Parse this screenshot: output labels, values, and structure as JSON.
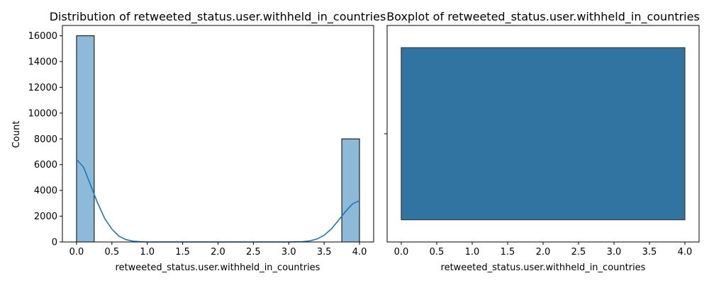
{
  "colors": {
    "hist_fill": "#8ebad9",
    "kde_line": "#1f77b4",
    "box_fill": "#3274a1",
    "box_edge": "#3d3d3d",
    "axis": "#000000"
  },
  "chart_data": [
    {
      "type": "histogram",
      "title": "Distribution of retweeted_status.user.withheld_in_countries",
      "xlabel": "retweeted_status.user.withheld_in_countries",
      "ylabel": "Count",
      "xlim": [
        -0.2,
        4.2
      ],
      "ylim": [
        0,
        16800
      ],
      "xticks": [
        "0.0",
        "0.5",
        "1.0",
        "1.5",
        "2.0",
        "2.5",
        "3.0",
        "3.5",
        "4.0"
      ],
      "yticks": [
        "0",
        "2000",
        "4000",
        "6000",
        "8000",
        "10000",
        "12000",
        "14000",
        "16000"
      ],
      "bins": [
        {
          "x0": 0.0,
          "x1": 0.25,
          "count": 16000
        },
        {
          "x0": 3.75,
          "x1": 4.0,
          "count": 8000
        }
      ],
      "kde": {
        "x": [
          0.0,
          0.1,
          0.2,
          0.3,
          0.4,
          0.5,
          0.6,
          0.7,
          0.8,
          0.9,
          1.0,
          1.5,
          2.0,
          2.5,
          3.0,
          3.1,
          3.2,
          3.3,
          3.4,
          3.5,
          3.6,
          3.7,
          3.8,
          3.9,
          4.0
        ],
        "y": [
          6400,
          5800,
          4400,
          3000,
          1800,
          1000,
          450,
          180,
          60,
          20,
          0,
          0,
          0,
          0,
          0,
          10,
          30,
          90,
          230,
          520,
          1000,
          1650,
          2350,
          2950,
          3200
        ]
      },
      "grid": false,
      "legend": "none"
    },
    {
      "type": "boxplot",
      "title": "Boxplot of retweeted_status.user.withheld_in_countries",
      "xlabel": "retweeted_status.user.withheld_in_countries",
      "ylabel": "",
      "xlim": [
        -0.2,
        4.2
      ],
      "xticks": [
        "0.0",
        "0.5",
        "1.0",
        "1.5",
        "2.0",
        "2.5",
        "3.0",
        "3.5",
        "4.0"
      ],
      "box": {
        "min": 0.0,
        "q1": 0.0,
        "median": 0.0,
        "q3": 4.0,
        "max": 4.0
      },
      "grid": false,
      "legend": "none"
    }
  ]
}
